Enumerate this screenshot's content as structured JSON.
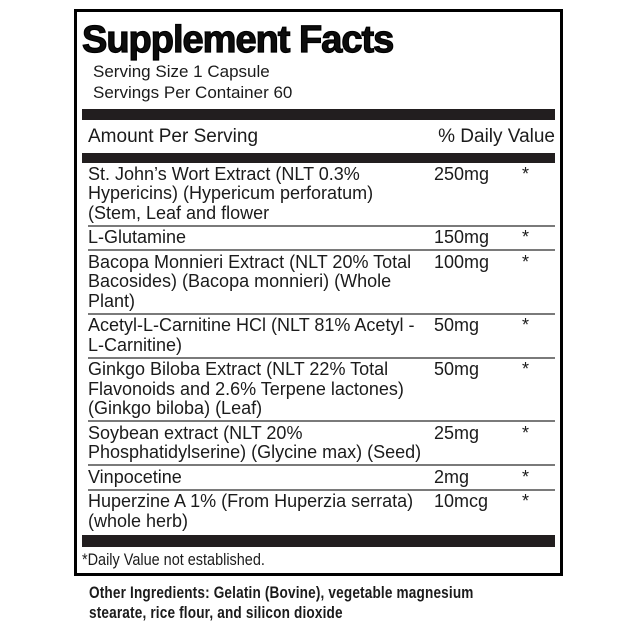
{
  "label": {
    "title": "Supplement Facts",
    "serving_size": "Serving Size 1 Capsule",
    "servings_per_container": "Servings Per Container 60",
    "header": {
      "amount_per_serving": "Amount Per Serving",
      "daily_value": "% Daily Value"
    },
    "rows": [
      {
        "name": "St. John’s Wort Extract (NLT 0.3% Hypericins) (Hypericum perforatum) (Stem, Leaf and flower",
        "amount": "250mg",
        "dv": "*"
      },
      {
        "name": "L-Glutamine",
        "amount": "150mg",
        "dv": "*"
      },
      {
        "name": "Bacopa Monnieri Extract (NLT 20% Total Bacosides) (Bacopa monnieri) (Whole Plant)",
        "amount": "100mg",
        "dv": "*"
      },
      {
        "name": "Acetyl-L-Carnitine HCl (NLT 81% Acetyl -L-Carnitine)",
        "amount": "50mg",
        "dv": "*"
      },
      {
        "name": "Ginkgo Biloba Extract (NLT 22% Total Flavonoids and 2.6% Terpene lactones) (Ginkgo biloba) (Leaf)",
        "amount": "50mg",
        "dv": "*"
      },
      {
        "name": "Soybean extract (NLT 20% Phosphatidylserine) (Glycine max) (Seed)",
        "amount": "25mg",
        "dv": "*"
      },
      {
        "name": "Vinpocetine",
        "amount": "2mg",
        "dv": "*"
      },
      {
        "name": "Huperzine A 1% (From Huperzia serrata) (whole herb)",
        "amount": "10mcg",
        "dv": "*"
      }
    ],
    "footnote": "*Daily Value not established.",
    "other_ingredients": "Other Ingredients: Gelatin (Bovine), vegetable magnesium stearate, rice flour, and silicon dioxide"
  },
  "colors": {
    "ink": "#1b1b1b",
    "panel_border": "#000000",
    "thick_bar": "#221e1f",
    "row_separator": "#7a7a7a",
    "background": "#ffffff"
  }
}
